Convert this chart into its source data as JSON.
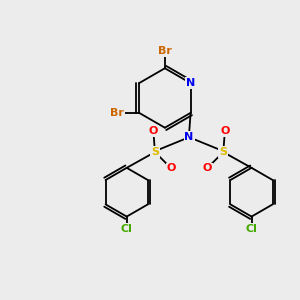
{
  "bg_color": "#ececec",
  "atom_colors": {
    "C": "#000000",
    "N": "#0000ee",
    "O": "#ff0000",
    "S": "#ddbb00",
    "Br": "#cc6600",
    "Cl": "#44aa00"
  },
  "bond_color": "#000000",
  "figsize": [
    3.0,
    3.0
  ],
  "dpi": 100
}
